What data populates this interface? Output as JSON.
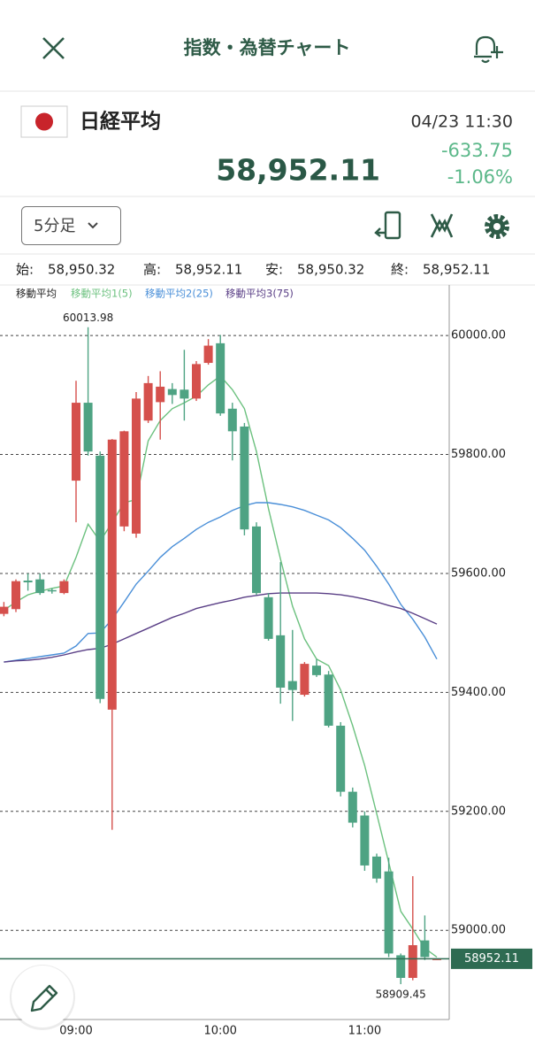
{
  "header": {
    "title": "指数・為替チャート"
  },
  "quote": {
    "name": "日経平均",
    "datetime": "04/23 11:30",
    "price": "58,952.11",
    "change": "-633.75",
    "change_pct": "-1.06%"
  },
  "controls": {
    "interval": "5分足"
  },
  "ohlc": [
    {
      "label": "始:",
      "value": "58,950.32"
    },
    {
      "label": "高:",
      "value": "58,952.11"
    },
    {
      "label": "安:",
      "value": "58,950.32"
    },
    {
      "label": "終:",
      "value": "58,952.11"
    }
  ],
  "chart_data": {
    "type": "candlestick",
    "categories": [
      null,
      null,
      null,
      null,
      null,
      null,
      "09:00",
      null,
      null,
      null,
      null,
      null,
      null,
      null,
      null,
      null,
      null,
      null,
      "10:00",
      null,
      null,
      null,
      null,
      null,
      null,
      null,
      null,
      null,
      null,
      null,
      "11:00",
      null,
      null,
      null,
      null,
      null,
      null
    ],
    "open": [
      59532,
      59540,
      59588,
      59590,
      59572,
      59567,
      59756,
      59887,
      59798,
      59371,
      59679,
      59667,
      59857,
      59888,
      59910,
      59909,
      59894,
      59954,
      59987,
      59877,
      59847,
      59679,
      59560,
      59496,
      59419,
      59396,
      59445,
      59430,
      59344,
      59233,
      59193,
      59124,
      59099,
      58958,
      58920,
      58983,
      58950.32
    ],
    "high": [
      59552,
      59590,
      59600,
      59600,
      59575,
      59590,
      59924,
      60013.98,
      59805,
      59826,
      59840,
      59905,
      59932,
      59940,
      59920,
      59976,
      59957,
      59994,
      60001,
      59887,
      59853,
      59686,
      59567,
      59619,
      59505,
      59451,
      59456,
      59436,
      59350,
      59240,
      59200,
      59129,
      59122,
      58961,
      59091,
      59025,
      58952.11
    ],
    "low": [
      59528,
      59535,
      59571,
      59564,
      59566,
      59565,
      59686,
      59798,
      59382,
      59169,
      59671,
      59660,
      59853,
      59825,
      59885,
      59857,
      59890,
      59951,
      59865,
      59790,
      59664,
      59564,
      59487,
      59381,
      59352,
      59393,
      59426,
      59341,
      59225,
      59173,
      59100,
      59080,
      58955,
      58909.45,
      58916,
      58950,
      58950.32
    ],
    "close": [
      59544,
      59587,
      59585,
      59567,
      59570,
      59587,
      59887,
      59805,
      59389,
      59825,
      59839,
      59894,
      59920,
      59914,
      59900,
      59894,
      59952,
      59983,
      59869,
      59839,
      59674,
      59567,
      59490,
      59408,
      59404,
      59448,
      59429,
      59344,
      59233,
      59181,
      59109,
      59087,
      58961,
      58920,
      58975,
      58955,
      58952.11
    ],
    "up_color": "#d5504c",
    "down_color": "#4ea383",
    "ma_title": "移動平均",
    "series": [
      {
        "name": "移動平均1(5)",
        "color": "#6cc17f",
        "values": [
          59538,
          59552,
          59564,
          59570,
          59575,
          59579,
          59627,
          59683,
          59654,
          59686,
          59719,
          59724,
          59823,
          59857,
          59877,
          59887,
          59898,
          59917,
          59932,
          59909,
          59877,
          59805,
          59709,
          59624,
          59545,
          59490,
          59456,
          59445,
          59404,
          59344,
          59277,
          59196,
          59114,
          59032,
          59002,
          58970,
          58955
        ]
      },
      {
        "name": "移動平均2(25)",
        "color": "#4a8fd8",
        "values": [
          59451,
          59454,
          59457,
          59460,
          59463,
          59466,
          59478,
          59499,
          59500,
          59523,
          59552,
          59582,
          59604,
          59627,
          59645,
          59659,
          59674,
          59686,
          59695,
          59706,
          59714,
          59719,
          59719,
          59716,
          59712,
          59706,
          59698,
          59690,
          59677,
          59659,
          59639,
          59612,
          59582,
          59548,
          59523,
          59493,
          59456
        ]
      },
      {
        "name": "移動平均3(75)",
        "color": "#5a3f86",
        "values": [
          59451,
          59453,
          59454,
          59456,
          59459,
          59463,
          59468,
          59472,
          59474,
          59481,
          59490,
          59499,
          59508,
          59517,
          59526,
          59533,
          59541,
          59546,
          59551,
          59555,
          59560,
          59563,
          59566,
          59567,
          59567,
          59567,
          59567,
          59566,
          59564,
          59561,
          59557,
          59552,
          59546,
          59541,
          59533,
          59524,
          59515
        ]
      }
    ],
    "ylim": [
      58850,
      60085
    ],
    "yticks": [
      {
        "value": 59000,
        "label": "59000.00"
      },
      {
        "value": 59200,
        "label": "59200.00"
      },
      {
        "value": 59400,
        "label": "59400.00"
      },
      {
        "value": 59600,
        "label": "59600.00"
      },
      {
        "value": 59800,
        "label": "59800.00"
      },
      {
        "value": 60000,
        "label": "60000.00"
      }
    ],
    "grid": true,
    "annotations": [
      {
        "value": 60013.98,
        "label": "60013.98"
      },
      {
        "value": 58909.45,
        "label": "58909.45"
      }
    ],
    "last_price": {
      "value": 58952.11,
      "label": "58952.11"
    }
  }
}
